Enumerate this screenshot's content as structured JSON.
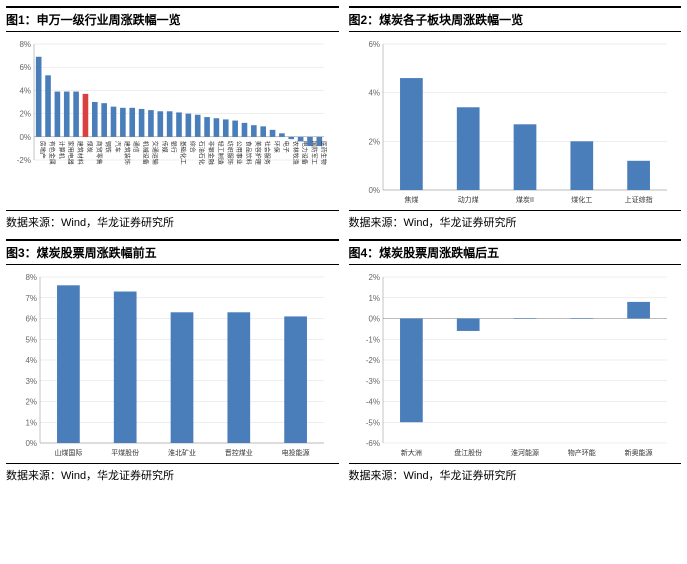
{
  "source_label": "数据来源：Wind，华龙证券研究所",
  "colors": {
    "bar": "#4a7ebb",
    "highlight": "#d94040",
    "axis": "#888888",
    "grid": "#dddddd",
    "background": "#ffffff"
  },
  "chart1": {
    "title": "图1：申万一级行业周涨跌幅一览",
    "type": "bar",
    "ylim": [
      -2,
      8
    ],
    "ytick_step": 2,
    "ytick_suffix": "%",
    "bar_width": 0.6,
    "highlight_index": 5,
    "categories": [
      "房地产",
      "有色金属",
      "计算机",
      "家用电器",
      "建筑材料",
      "煤炭",
      "商贸零售",
      "钢铁",
      "汽车",
      "建筑装饰",
      "通信",
      "机械设备",
      "交通运输",
      "传媒",
      "银行",
      "基础化工",
      "综合",
      "石油石化",
      "非银金融",
      "轻工制造",
      "纺织服饰",
      "公用事业",
      "食品饮料",
      "美容护理",
      "社会服务",
      "环保",
      "电子",
      "农林牧渔",
      "电力设备",
      "国防军工",
      "医药生物"
    ],
    "values": [
      6.9,
      5.3,
      3.9,
      3.9,
      3.9,
      3.7,
      3.0,
      2.9,
      2.6,
      2.5,
      2.5,
      2.4,
      2.3,
      2.2,
      2.2,
      2.1,
      2.0,
      1.9,
      1.7,
      1.6,
      1.5,
      1.4,
      1.2,
      1.0,
      0.9,
      0.6,
      0.3,
      -0.2,
      -0.4,
      -0.8,
      -0.8
    ]
  },
  "chart2": {
    "title": "图2：煤炭各子板块周涨跌幅一览",
    "type": "bar",
    "ylim": [
      0,
      6
    ],
    "ytick_step": 2,
    "ytick_suffix": "%",
    "bar_width": 0.4,
    "categories": [
      "焦煤",
      "动力煤",
      "煤炭II",
      "煤化工",
      "上证综指"
    ],
    "values": [
      4.6,
      3.4,
      2.7,
      2.0,
      1.2
    ]
  },
  "chart3": {
    "title": "图3：煤炭股票周涨跌幅前五",
    "type": "bar",
    "ylim": [
      0,
      8
    ],
    "ytick_step": 1,
    "ytick_suffix": "%",
    "bar_width": 0.4,
    "categories": [
      "山煤国际",
      "平煤股份",
      "淮北矿业",
      "晋控煤业",
      "电投能源"
    ],
    "values": [
      7.6,
      7.3,
      6.3,
      6.3,
      6.1
    ]
  },
  "chart4": {
    "title": "图4：煤炭股票周涨跌幅后五",
    "type": "bar",
    "ylim": [
      -6,
      2
    ],
    "ytick_step": 1,
    "ytick_suffix": "%",
    "bar_width": 0.4,
    "categories": [
      "新大洲",
      "盘江股份",
      "淮河能源",
      "物产环能",
      "新奥能源"
    ],
    "values": [
      -5.0,
      -0.6,
      0.0,
      0.0,
      0.8
    ]
  }
}
